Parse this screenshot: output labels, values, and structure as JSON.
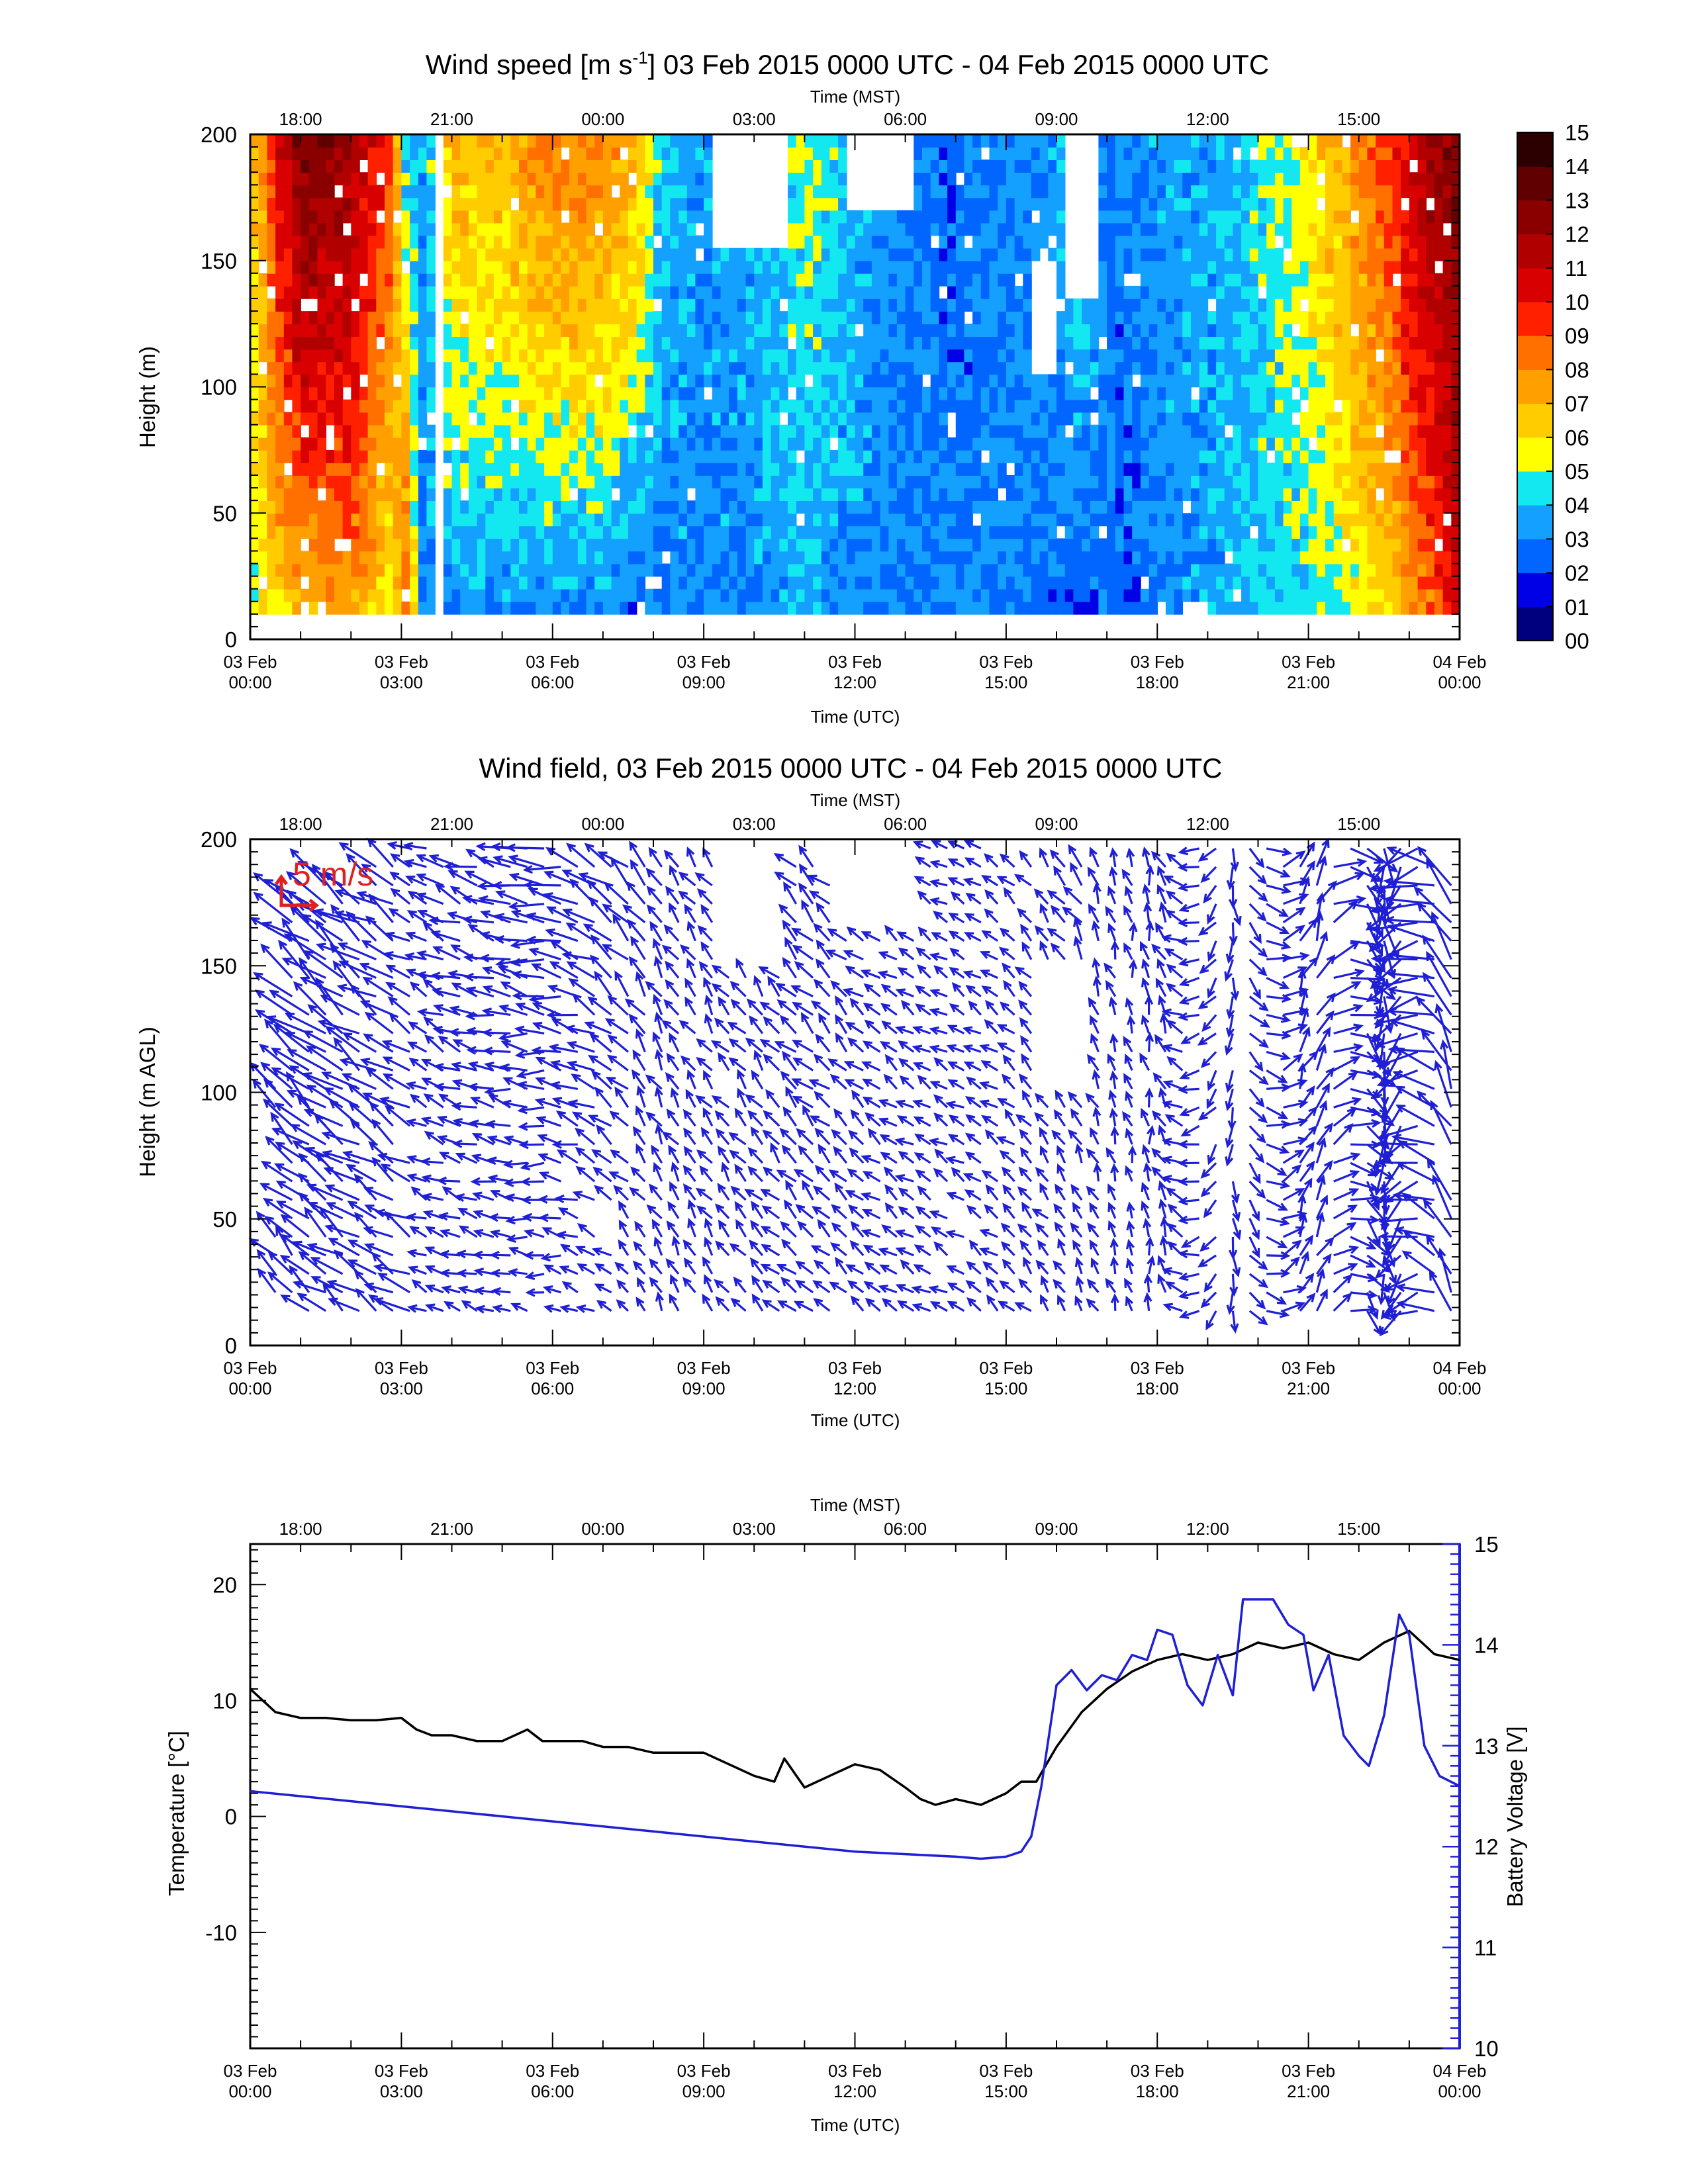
{
  "chart_data": [
    {
      "type": "heatmap",
      "title": "Wind speed [m s-1] 03 Feb 2015 0000 UTC - 04 Feb 2015 0000 UTC",
      "title_parts": {
        "a": "Wind speed [m s",
        "sup": "-1",
        "b": "] 03 Feb 2015 0000 UTC - 04 Feb 2015 0000 UTC"
      },
      "xlabel": "Time (UTC)",
      "x2label": "Time (MST)",
      "ylabel": "Height (m)",
      "xlim": [
        0,
        24
      ],
      "ylim": [
        0,
        200
      ],
      "x_ticks": [
        {
          "hour": 0,
          "line1": "03 Feb",
          "line2": "00:00"
        },
        {
          "hour": 3,
          "line1": "03 Feb",
          "line2": "03:00"
        },
        {
          "hour": 6,
          "line1": "03 Feb",
          "line2": "06:00"
        },
        {
          "hour": 9,
          "line1": "03 Feb",
          "line2": "09:00"
        },
        {
          "hour": 12,
          "line1": "03 Feb",
          "line2": "12:00"
        },
        {
          "hour": 15,
          "line1": "03 Feb",
          "line2": "15:00"
        },
        {
          "hour": 18,
          "line1": "03 Feb",
          "line2": "18:00"
        },
        {
          "hour": 21,
          "line1": "03 Feb",
          "line2": "21:00"
        },
        {
          "hour": 24,
          "line1": "04 Feb",
          "line2": "00:00"
        }
      ],
      "x2_ticks": [
        {
          "hour": 1,
          "label": "18:00"
        },
        {
          "hour": 4,
          "label": "21:00"
        },
        {
          "hour": 7,
          "label": "00:00"
        },
        {
          "hour": 10,
          "label": "03:00"
        },
        {
          "hour": 13,
          "label": "06:00"
        },
        {
          "hour": 16,
          "label": "09:00"
        },
        {
          "hour": 19,
          "label": "12:00"
        },
        {
          "hour": 22,
          "label": "15:00"
        }
      ],
      "y_ticks": [
        0,
        50,
        100,
        150,
        200
      ],
      "colorbar": {
        "labels": [
          "00",
          "01",
          "02",
          "03",
          "04",
          "05",
          "06",
          "07",
          "08",
          "09",
          "10",
          "11",
          "12",
          "13",
          "14",
          "15"
        ],
        "colors": [
          "#00007f",
          "#0000e6",
          "#0066ff",
          "#14a0ff",
          "#13e8f0",
          "#ffff00",
          "#ffcc00",
          "#ffa000",
          "#ff7000",
          "#ff2000",
          "#d80000",
          "#b00000",
          "#8a0000",
          "#600000",
          "#2c0000"
        ]
      },
      "height_range_with_data": [
        10,
        200
      ],
      "speed_by_time": {
        "hours": [
          0,
          0.6,
          1,
          2,
          2.8,
          3.1,
          3.4,
          4,
          5,
          6,
          7,
          7.7,
          8.2,
          9,
          10,
          11,
          12,
          13,
          14,
          15,
          16,
          16.5,
          17,
          17.5,
          18,
          19,
          20,
          21,
          22,
          22.7,
          23,
          23.5,
          24
        ],
        "low_levels_m_s": [
          5,
          5.5,
          6,
          7,
          5,
          10,
          3,
          2.5,
          2.5,
          2,
          2.5,
          1.5,
          3,
          3,
          3,
          3.5,
          3,
          3,
          3,
          3,
          2.5,
          2,
          2.5,
          2,
          3,
          3.5,
          4,
          4,
          5,
          6,
          7,
          8,
          11
        ],
        "high_levels_m_s": [
          6,
          11,
          13,
          12,
          9,
          4,
          3.5,
          7,
          7,
          8.5,
          8,
          7,
          4,
          3.5,
          4,
          5,
          4,
          3,
          2.5,
          3,
          3.5,
          5,
          3,
          3,
          3.5,
          3.5,
          4.5,
          6,
          8,
          9.5,
          11,
          12,
          13
        ]
      }
    },
    {
      "type": "vector",
      "title": "Wind field, 03 Feb 2015 0000 UTC - 04 Feb 2015 0000 UTC",
      "xlabel": "Time (UTC)",
      "x2label": "Time (MST)",
      "ylabel": "Height (m AGL)",
      "xlim": [
        0,
        24
      ],
      "ylim": [
        0,
        200
      ],
      "reference_vector": "5 m/s",
      "arrow_color": "#1f1fd6",
      "reference_color": "#e02020",
      "direction_deg_by_time": {
        "hours": [
          0,
          3,
          6,
          8,
          10,
          12,
          14,
          16,
          18,
          21,
          24
        ],
        "toward_deg": [
          315,
          300,
          275,
          330,
          320,
          310,
          300,
          320,
          355,
          5,
          350
        ]
      }
    },
    {
      "type": "line",
      "xlabel": "Time (UTC)",
      "x2label": "Time (MST)",
      "ylabel": "Temperature [°C]",
      "y2label": "Battery Voltage [V]",
      "xlim": [
        0,
        24
      ],
      "ylim": [
        -20,
        23.5
      ],
      "y2lim": [
        10,
        15
      ],
      "y_ticks": [
        20,
        10,
        0,
        -10
      ],
      "y2_ticks": [
        15,
        14,
        13,
        12,
        11,
        10
      ],
      "series": [
        {
          "name": "Temperature",
          "axis": "left",
          "color": "#000000",
          "x": [
            0,
            0.5,
            1,
            1.5,
            2,
            2.5,
            3,
            3.3,
            3.6,
            4,
            4.5,
            5,
            5.5,
            5.8,
            6,
            6.3,
            6.6,
            7,
            7.5,
            8,
            8.5,
            9,
            9.5,
            10,
            10.4,
            10.6,
            11,
            11.5,
            12,
            12.5,
            13,
            13.3,
            13.6,
            14,
            14.5,
            15,
            15.3,
            15.6,
            16,
            16.5,
            17,
            17.5,
            18,
            18.5,
            19,
            19.5,
            20,
            20.5,
            21,
            21.5,
            22,
            22.5,
            23,
            23.5,
            24
          ],
          "y": [
            11,
            9,
            8.5,
            8.5,
            8.3,
            8.3,
            8.5,
            7.5,
            7,
            7,
            6.5,
            6.5,
            7.5,
            6.5,
            6.5,
            6.5,
            6.5,
            6,
            6,
            5.5,
            5.5,
            5.5,
            4.5,
            3.5,
            3,
            5,
            2.5,
            3.5,
            4.5,
            4,
            2.5,
            1.5,
            1,
            1.5,
            1,
            2,
            3,
            3,
            6,
            9,
            11,
            12.5,
            13.5,
            14,
            13.5,
            14,
            15,
            14.5,
            15,
            14,
            13.5,
            15,
            16,
            14,
            13.5
          ]
        },
        {
          "name": "Battery Voltage",
          "axis": "right",
          "color": "#1f1fd6",
          "x": [
            0,
            2,
            4,
            6,
            8,
            10,
            12,
            14,
            14.5,
            15,
            15.3,
            15.5,
            15.7,
            16,
            16.3,
            16.6,
            16.9,
            17.2,
            17.5,
            17.8,
            18,
            18.3,
            18.6,
            18.9,
            19.2,
            19.5,
            19.7,
            20,
            20.3,
            20.6,
            20.9,
            21.1,
            21.4,
            21.7,
            22,
            22.2,
            22.5,
            22.8,
            23,
            23.3,
            23.6,
            24
          ],
          "y": [
            12.55,
            12.45,
            12.35,
            12.25,
            12.15,
            12.05,
            11.95,
            11.9,
            11.88,
            11.9,
            11.95,
            12.1,
            12.6,
            13.6,
            13.75,
            13.55,
            13.7,
            13.65,
            13.9,
            13.85,
            14.15,
            14.1,
            13.6,
            13.4,
            13.9,
            13.5,
            14.45,
            14.45,
            14.45,
            14.2,
            14.1,
            13.55,
            13.9,
            13.1,
            12.9,
            12.8,
            13.3,
            14.3,
            14.1,
            13.0,
            12.7,
            12.6
          ]
        }
      ]
    }
  ]
}
